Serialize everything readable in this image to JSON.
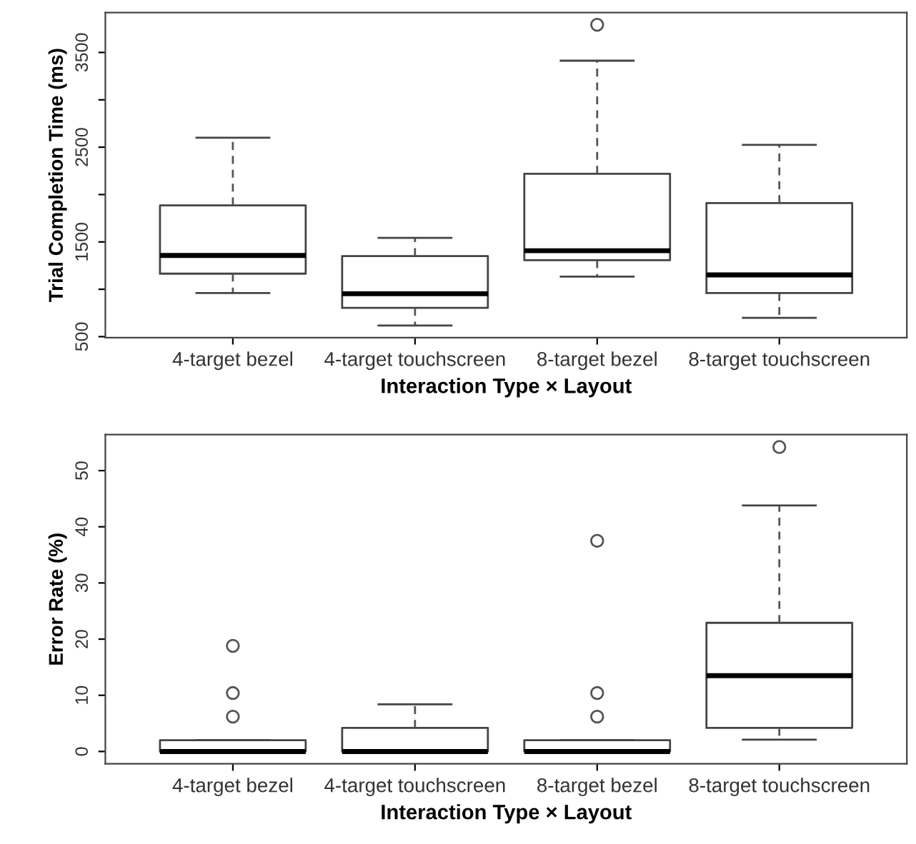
{
  "chart_data": [
    {
      "type": "box",
      "xlabel": "Interaction Type × Layout",
      "ylabel": "Trial Completion Time (ms)",
      "categories": [
        "4-target bezel",
        "4-target touchscreen",
        "8-target bezel",
        "8-target touchscreen"
      ],
      "boxes": [
        {
          "low": 960,
          "q1": 1165,
          "median": 1357,
          "q3": 1885,
          "high": 2600
        },
        {
          "low": 618,
          "q1": 804,
          "median": 953,
          "q3": 1351,
          "high": 1543
        },
        {
          "low": 1134,
          "q1": 1307,
          "median": 1407,
          "q3": 2220,
          "high": 3413,
          "outliers": [
            3792
          ]
        },
        {
          "low": 699,
          "q1": 960,
          "median": 1152,
          "q3": 1910,
          "high": 2525
        }
      ],
      "ylim": [
        490,
        3920
      ],
      "yticks": [
        500,
        {
          "value": 1000,
          "label": null
        },
        1500,
        {
          "value": 2000,
          "label": null
        },
        2500,
        {
          "value": 3000,
          "label": null
        },
        3500
      ],
      "grid": false
    },
    {
      "type": "box",
      "xlabel": "Interaction Type × Layout",
      "ylabel": "Error Rate (%)",
      "categories": [
        "4-target bezel",
        "4-target touchscreen",
        "8-target bezel",
        "8-target touchscreen"
      ],
      "boxes": [
        {
          "low": 0,
          "q1": 0,
          "median": 0,
          "q3": 2.0,
          "high": 2.0,
          "outliers": [
            6.2,
            10.4,
            18.8
          ]
        },
        {
          "low": 0,
          "q1": 0,
          "median": 0,
          "q3": 4.2,
          "high": 8.4
        },
        {
          "low": 0,
          "q1": 0,
          "median": 0,
          "q3": 2.0,
          "high": 2.0,
          "outliers": [
            6.2,
            10.4,
            37.5
          ]
        },
        {
          "low": 2.1,
          "q1": 4.2,
          "median": 13.5,
          "q3": 22.9,
          "high": 43.8,
          "outliers": [
            54.2
          ]
        }
      ],
      "ylim": [
        -2.2,
        56.4
      ],
      "yticks": [
        0,
        10,
        20,
        30,
        40,
        50
      ],
      "grid": false
    }
  ]
}
